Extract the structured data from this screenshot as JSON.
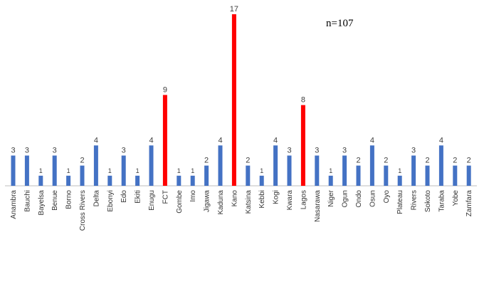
{
  "chart_data": {
    "type": "bar",
    "categories": [
      "Anambra",
      "Bauchi",
      "Bayelsa",
      "Benue",
      "Borno",
      "Cross Rivers",
      "Delta",
      "Ebonyi",
      "Edo",
      "Ekiti",
      "Enugu",
      "FCT",
      "Gombe",
      "Imo",
      "Jigawa",
      "Kaduna",
      "Kano",
      "Katsina",
      "Kebbi",
      "Kogi",
      "Kwara",
      "Lagos",
      "Nasarawa",
      "Niger",
      "Ogun",
      "Ondo",
      "Osun",
      "Oyo",
      "Plateau",
      "Rivers",
      "Sokoto",
      "Taraba",
      "Yobe",
      "Zamfara"
    ],
    "values": [
      3,
      3,
      1,
      3,
      1,
      2,
      4,
      1,
      3,
      1,
      4,
      9,
      1,
      1,
      2,
      4,
      17,
      2,
      1,
      4,
      3,
      8,
      3,
      1,
      3,
      2,
      4,
      2,
      1,
      3,
      2,
      4,
      2,
      2
    ],
    "highlighted_categories": [
      "FCT",
      "Kano",
      "Lagos"
    ],
    "annotation": "n=107",
    "ylim": [
      0,
      17
    ],
    "grid": false,
    "legend": "none",
    "colors": {
      "default": "#4472C4",
      "highlight": "#FF0000",
      "axis": "#BFBFBF"
    }
  }
}
